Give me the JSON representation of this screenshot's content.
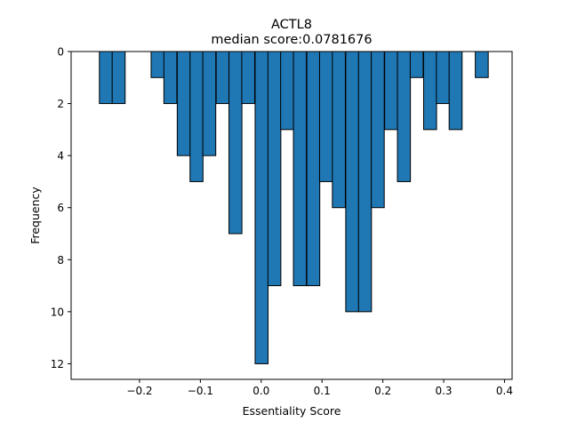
{
  "chart_data": {
    "type": "bar",
    "title": "ACTL8",
    "subtitle": "median score:0.0781676",
    "xlabel": "Essentiality Score",
    "ylabel": "Frequency",
    "y_axis_inverted": true,
    "xlim": [
      -0.3125,
      0.4125
    ],
    "ylim": [
      0,
      12.6
    ],
    "x_ticks": [
      -0.2,
      -0.1,
      0.0,
      0.1,
      0.2,
      0.3,
      0.4
    ],
    "x_tick_labels": [
      "−0.2",
      "−0.1",
      "0.0",
      "0.1",
      "0.2",
      "0.3",
      "0.4"
    ],
    "y_ticks": [
      0,
      2,
      4,
      6,
      8,
      10,
      12
    ],
    "y_tick_labels": [
      "0",
      "2",
      "4",
      "6",
      "8",
      "10",
      "12"
    ],
    "bin_width": 0.0213,
    "bin_left_edges": [
      -0.266,
      -0.245,
      -0.223,
      -0.181,
      -0.16,
      -0.138,
      -0.117,
      -0.096,
      -0.074,
      -0.053,
      -0.032,
      -0.01,
      0.011,
      0.032,
      0.053,
      0.075,
      0.096,
      0.117,
      0.139,
      0.16,
      0.181,
      0.203,
      0.224,
      0.245,
      0.267,
      0.288,
      0.309,
      0.352
    ],
    "values": [
      2,
      2,
      0,
      1,
      2,
      4,
      5,
      4,
      2,
      7,
      2,
      12,
      9,
      3,
      9,
      9,
      5,
      6,
      10,
      10,
      6,
      3,
      5,
      1,
      3,
      2,
      3,
      1
    ],
    "bar_color": "#1f77b4",
    "edge_color": "#000000",
    "grid": false,
    "legend": "none"
  }
}
